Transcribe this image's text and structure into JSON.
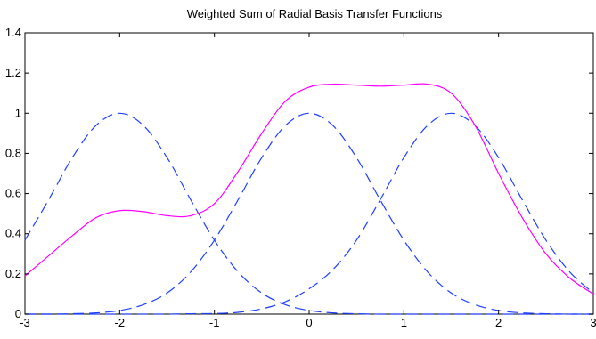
{
  "chart_data": {
    "type": "line",
    "title": "Weighted Sum of Radial Basis Transfer Functions",
    "xlabel": "",
    "ylabel": "",
    "xlim": [
      -3,
      3
    ],
    "ylim": [
      0,
      1.4
    ],
    "xticks": [
      -3,
      -2,
      -1,
      0,
      1,
      2,
      3
    ],
    "yticks": [
      0,
      0.2,
      0.4,
      0.6,
      0.8,
      1,
      1.2,
      1.4
    ],
    "xtick_labels": [
      "-3",
      "-2",
      "-1",
      "0",
      "1",
      "2",
      "3"
    ],
    "ytick_labels": [
      "0",
      "0.2",
      "0.4",
      "0.6",
      "0.8",
      "1",
      "1.2",
      "1.4"
    ],
    "grid": false,
    "x": [
      -3.0,
      -2.75,
      -2.5,
      -2.25,
      -2.0,
      -1.75,
      -1.5,
      -1.25,
      -1.0,
      -0.75,
      -0.5,
      -0.25,
      0.0,
      0.25,
      0.5,
      0.75,
      1.0,
      1.25,
      1.5,
      1.75,
      2.0,
      2.25,
      2.5,
      2.75,
      3.0
    ],
    "series": [
      {
        "style": "dashed",
        "color": "#1f3fff",
        "values": [
          0.368,
          0.569,
          0.779,
          0.939,
          1.0,
          0.939,
          0.779,
          0.569,
          0.368,
          0.21,
          0.105,
          0.047,
          0.018,
          0.006,
          0.002,
          0.0,
          0.0,
          0.0,
          0.0,
          0.0,
          0.0,
          0.0,
          0.0,
          0.0,
          0.0
        ]
      },
      {
        "style": "dashed",
        "color": "#1f3fff",
        "values": [
          0.0,
          0.0,
          0.002,
          0.006,
          0.018,
          0.047,
          0.105,
          0.21,
          0.368,
          0.569,
          0.779,
          0.939,
          1.0,
          0.939,
          0.779,
          0.569,
          0.368,
          0.21,
          0.105,
          0.047,
          0.018,
          0.006,
          0.002,
          0.0,
          0.0
        ]
      },
      {
        "style": "dashed",
        "color": "#1f3fff",
        "values": [
          0.0,
          0.0,
          0.0,
          0.0,
          0.0,
          0.0,
          0.0,
          0.002,
          0.003,
          0.009,
          0.026,
          0.062,
          0.126,
          0.221,
          0.368,
          0.569,
          0.779,
          0.939,
          1.0,
          0.939,
          0.779,
          0.569,
          0.368,
          0.21,
          0.105
        ]
      },
      {
        "style": "solid",
        "color": "#ff00ff",
        "values": [
          0.19,
          0.29,
          0.39,
          0.48,
          0.515,
          0.51,
          0.49,
          0.49,
          0.55,
          0.71,
          0.9,
          1.06,
          1.13,
          1.145,
          1.14,
          1.135,
          1.14,
          1.145,
          1.1,
          0.94,
          0.7,
          0.48,
          0.3,
          0.18,
          0.1
        ]
      }
    ]
  }
}
